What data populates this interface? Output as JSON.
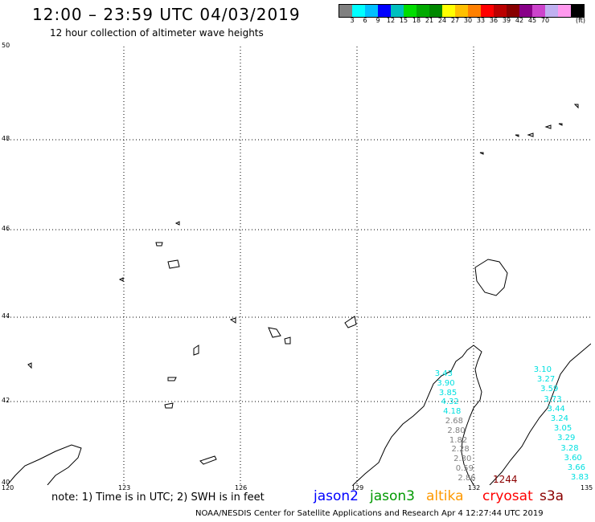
{
  "header": {
    "title": "12:00 – 23:59 UTC 04/03/2019",
    "subtitle": "12 hour collection of altimeter wave heights"
  },
  "colorbar": {
    "colors": [
      "#808080",
      "#00ffff",
      "#00bfff",
      "#0000ff",
      "#00bfbf",
      "#00dd00",
      "#00aa00",
      "#008800",
      "#ffff00",
      "#ffc000",
      "#ff8000",
      "#ff0000",
      "#bb0000",
      "#880000",
      "#880088",
      "#cc44cc",
      "#c0b0f0",
      "#ff99ee",
      "#000000"
    ],
    "ticks": [
      "3",
      "6",
      "9",
      "12",
      "15",
      "18",
      "21",
      "24",
      "27",
      "30",
      "33",
      "36",
      "39",
      "42",
      "45",
      "70"
    ],
    "unit": "(ft)"
  },
  "axes": {
    "y_labels": [
      "50",
      "48",
      "46",
      "44",
      "42",
      "40"
    ],
    "x_labels": [
      "120",
      "123",
      "126",
      "129",
      "132",
      "135"
    ]
  },
  "swh_labels": {
    "left_track": [
      {
        "value": "3.43",
        "color": "#00e0e0"
      },
      {
        "value": "3.90",
        "color": "#00e0e0"
      },
      {
        "value": "3.85",
        "color": "#00e0e0"
      },
      {
        "value": "4.32",
        "color": "#00e0e0"
      },
      {
        "value": "4.18",
        "color": "#00e0e0"
      },
      {
        "value": "2.68",
        "color": "#808080"
      },
      {
        "value": "2.80",
        "color": "#808080"
      },
      {
        "value": "1.82",
        "color": "#808080"
      },
      {
        "value": "2.28",
        "color": "#808080"
      },
      {
        "value": "2.30",
        "color": "#808080"
      },
      {
        "value": "0.59",
        "color": "#808080"
      },
      {
        "value": "2.86",
        "color": "#808080"
      }
    ],
    "right_track": [
      {
        "value": "3.10",
        "color": "#00e0e0"
      },
      {
        "value": "3.27",
        "color": "#00e0e0"
      },
      {
        "value": "3.59",
        "color": "#00e0e0"
      },
      {
        "value": "3.73",
        "color": "#00e0e0"
      },
      {
        "value": "3.44",
        "color": "#00e0e0"
      },
      {
        "value": "3.24",
        "color": "#00e0e0"
      },
      {
        "value": "3.05",
        "color": "#00e0e0"
      },
      {
        "value": "3.29",
        "color": "#00e0e0"
      },
      {
        "value": "3.28",
        "color": "#00e0e0"
      },
      {
        "value": "3.60",
        "color": "#00e0e0"
      },
      {
        "value": "3.66",
        "color": "#00e0e0"
      },
      {
        "value": "3.83",
        "color": "#00e0e0"
      }
    ],
    "max_value": "1244"
  },
  "footer": {
    "note": "note: 1) Time is in UTC; 2) SWH is in feet",
    "satellites": [
      {
        "name": "jason2",
        "color": "#0000ff"
      },
      {
        "name": "jason3",
        "color": "#009900"
      },
      {
        "name": "altika",
        "color": "#ff9900"
      },
      {
        "name": "cryosat",
        "color": "#ff0000"
      },
      {
        "name": "s3a",
        "color": "#8b0000"
      }
    ],
    "credit": "NOAA/NESDIS Center for Satellite Applications and Research    Apr  4 12:27:44 UTC 2019"
  }
}
